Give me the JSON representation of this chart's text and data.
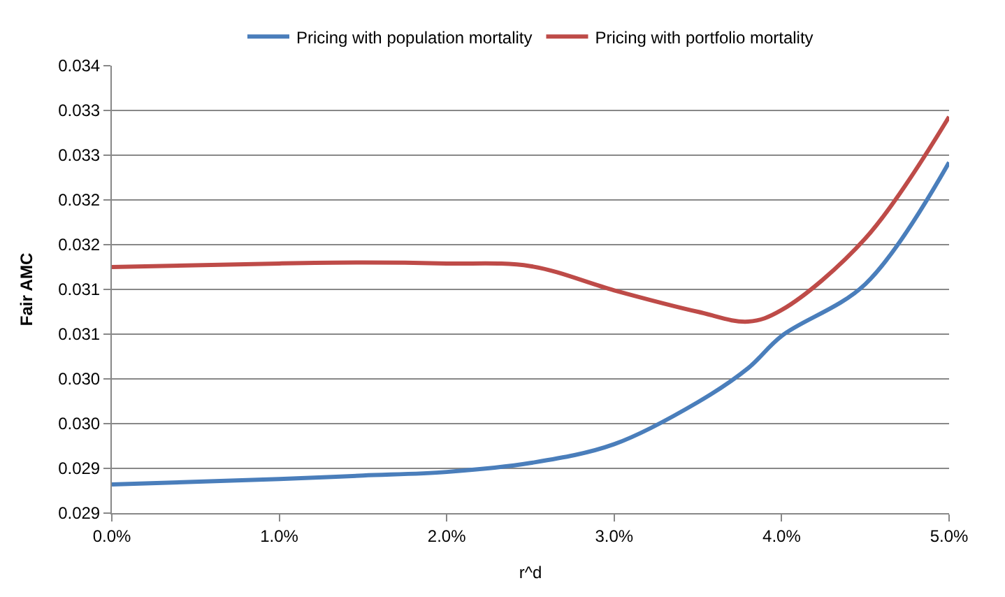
{
  "chart_data": {
    "type": "line",
    "xlabel": "r^d",
    "ylabel": "Fair AMC",
    "x": [
      0,
      0.01,
      0.015,
      0.02,
      0.025,
      0.03,
      0.035,
      0.038,
      0.04,
      0.045,
      0.05
    ],
    "series": [
      {
        "name": "Pricing with population mortality",
        "color": "#4a7ebb",
        "values": [
          0.02932,
          0.02938,
          0.02942,
          0.02946,
          0.02956,
          0.02977,
          0.03024,
          0.03062,
          0.03098,
          0.03156,
          0.03292
        ]
      },
      {
        "name": "Pricing with portfolio mortality",
        "color": "#be4b48",
        "values": [
          0.03175,
          0.03179,
          0.0318,
          0.03179,
          0.03176,
          0.03149,
          0.03125,
          0.03114,
          0.03127,
          0.03207,
          0.03343
        ]
      }
    ],
    "xlim": [
      0,
      0.05
    ],
    "xticks": [
      {
        "value": 0,
        "label": "0.0%"
      },
      {
        "value": 0.01,
        "label": "1.0%"
      },
      {
        "value": 0.02,
        "label": "2.0%"
      },
      {
        "value": 0.03,
        "label": "3.0%"
      },
      {
        "value": 0.04,
        "label": "4.0%"
      },
      {
        "value": 0.05,
        "label": "5.0%"
      }
    ],
    "ylim": [
      0.029,
      0.034
    ],
    "yticks": [
      {
        "value": 0.029,
        "label": "0.029"
      },
      {
        "value": 0.0295,
        "label": "0.029"
      },
      {
        "value": 0.03,
        "label": "0.030"
      },
      {
        "value": 0.0305,
        "label": "0.030"
      },
      {
        "value": 0.031,
        "label": "0.031"
      },
      {
        "value": 0.0315,
        "label": "0.031"
      },
      {
        "value": 0.032,
        "label": "0.032"
      },
      {
        "value": 0.0325,
        "label": "0.032"
      },
      {
        "value": 0.033,
        "label": "0.033"
      },
      {
        "value": 0.0335,
        "label": "0.033"
      },
      {
        "value": 0.034,
        "label": "0.034"
      }
    ],
    "grid": "y",
    "legend": "top",
    "marker": "none",
    "line_style": "solid"
  }
}
